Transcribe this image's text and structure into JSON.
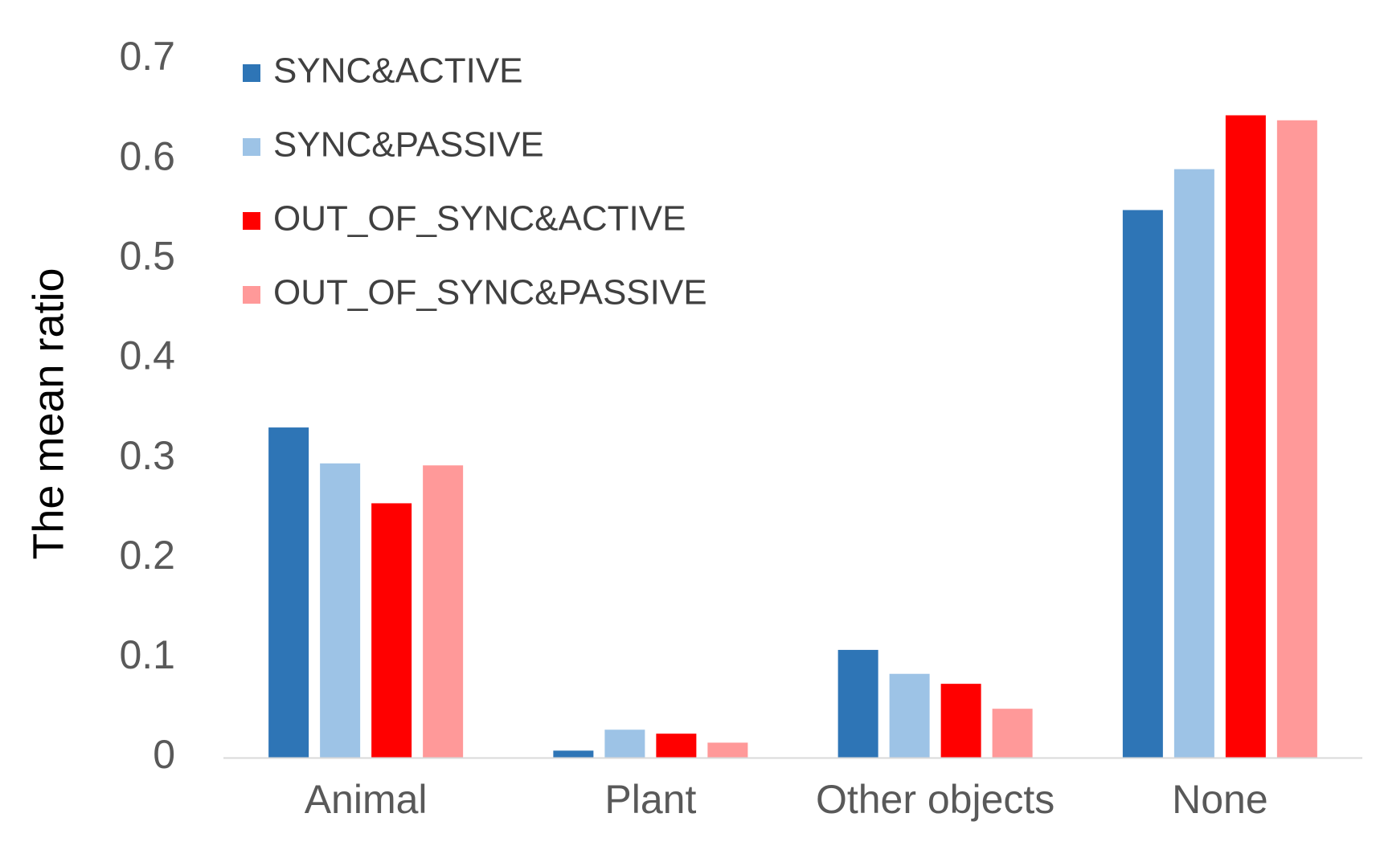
{
  "chart_data": {
    "type": "bar",
    "title": "",
    "xlabel": "",
    "ylabel": "The mean ratio",
    "categories": [
      "Animal",
      "Plant",
      "Other objects",
      "None"
    ],
    "ylim": [
      0,
      0.7
    ],
    "yticks": [
      0,
      0.1,
      0.2,
      0.3,
      0.4,
      0.5,
      0.6,
      0.7
    ],
    "ytick_labels": [
      "0",
      "0.1",
      "0.2",
      "0.3",
      "0.4",
      "0.5",
      "0.6",
      "0.7"
    ],
    "grid": false,
    "legend_position": "top-left",
    "series": [
      {
        "name": "SYNC&ACTIVE",
        "color": "#2E75B6",
        "values": [
          0.331,
          0.007,
          0.108,
          0.549
        ]
      },
      {
        "name": "SYNC&PASSIVE",
        "color": "#9DC3E6",
        "values": [
          0.295,
          0.028,
          0.084,
          0.59
        ]
      },
      {
        "name": "OUT_OF_SYNC&ACTIVE",
        "color": "#FF0000",
        "values": [
          0.255,
          0.024,
          0.074,
          0.644
        ]
      },
      {
        "name": "OUT_OF_SYNC&PASSIVE",
        "color": "#FF9999",
        "values": [
          0.293,
          0.015,
          0.049,
          0.639
        ]
      }
    ],
    "axis_color": "#D9D9D9"
  }
}
